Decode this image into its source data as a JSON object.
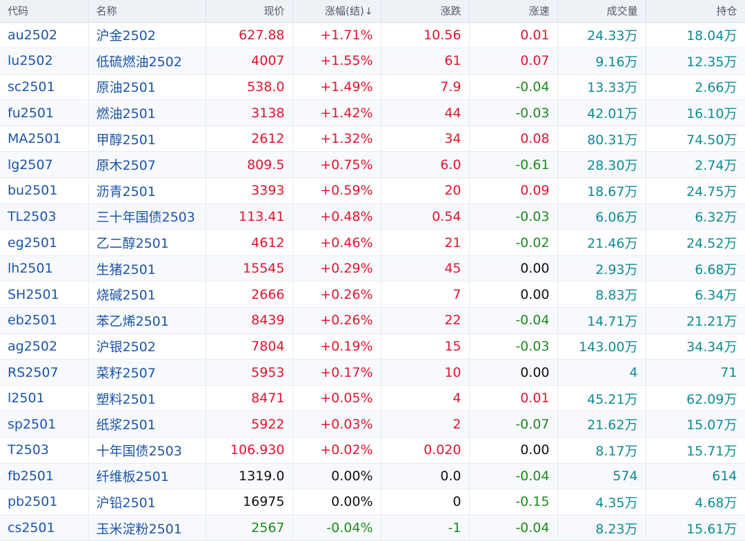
{
  "colors": {
    "up": "#e0142e",
    "down": "#1c8a1c",
    "flat": "#111111",
    "link": "#1c54a8",
    "teal": "#0f8a94",
    "header_bg": "#eef2f7"
  },
  "header": {
    "code": "代码",
    "name": "名称",
    "price": "现价",
    "pct": "涨幅(结)",
    "sort_icon": "↓",
    "change": "涨跌",
    "speed": "涨速",
    "volume": "成交量",
    "oi": "持仓"
  },
  "rows": [
    {
      "code": "au2502",
      "name": "沪金2502",
      "price": "627.88",
      "pct": "+1.71%",
      "change": "10.56",
      "speed": "0.01",
      "volume": "24.33万",
      "oi": "18.04万",
      "dir": "up",
      "sdir": "up"
    },
    {
      "code": "lu2502",
      "name": "低硫燃油2502",
      "price": "4007",
      "pct": "+1.55%",
      "change": "61",
      "speed": "0.07",
      "volume": "9.16万",
      "oi": "12.35万",
      "dir": "up",
      "sdir": "up"
    },
    {
      "code": "sc2501",
      "name": "原油2501",
      "price": "538.0",
      "pct": "+1.49%",
      "change": "7.9",
      "speed": "-0.04",
      "volume": "13.33万",
      "oi": "2.66万",
      "dir": "up",
      "sdir": "down"
    },
    {
      "code": "fu2501",
      "name": "燃油2501",
      "price": "3138",
      "pct": "+1.42%",
      "change": "44",
      "speed": "-0.03",
      "volume": "42.01万",
      "oi": "16.10万",
      "dir": "up",
      "sdir": "down"
    },
    {
      "code": "MA2501",
      "name": "甲醇2501",
      "price": "2612",
      "pct": "+1.32%",
      "change": "34",
      "speed": "0.08",
      "volume": "80.31万",
      "oi": "74.50万",
      "dir": "up",
      "sdir": "up"
    },
    {
      "code": "lg2507",
      "name": "原木2507",
      "price": "809.5",
      "pct": "+0.75%",
      "change": "6.0",
      "speed": "-0.61",
      "volume": "28.30万",
      "oi": "2.74万",
      "dir": "up",
      "sdir": "down"
    },
    {
      "code": "bu2501",
      "name": "沥青2501",
      "price": "3393",
      "pct": "+0.59%",
      "change": "20",
      "speed": "0.09",
      "volume": "18.67万",
      "oi": "24.75万",
      "dir": "up",
      "sdir": "up"
    },
    {
      "code": "TL2503",
      "name": "三十年国债2503",
      "price": "113.41",
      "pct": "+0.48%",
      "change": "0.54",
      "speed": "-0.03",
      "volume": "6.06万",
      "oi": "6.32万",
      "dir": "up",
      "sdir": "down"
    },
    {
      "code": "eg2501",
      "name": "乙二醇2501",
      "price": "4612",
      "pct": "+0.46%",
      "change": "21",
      "speed": "-0.02",
      "volume": "21.46万",
      "oi": "24.52万",
      "dir": "up",
      "sdir": "down"
    },
    {
      "code": "lh2501",
      "name": "生猪2501",
      "price": "15545",
      "pct": "+0.29%",
      "change": "45",
      "speed": "0.00",
      "volume": "2.93万",
      "oi": "6.68万",
      "dir": "up",
      "sdir": "flat"
    },
    {
      "code": "SH2501",
      "name": "烧碱2501",
      "price": "2666",
      "pct": "+0.26%",
      "change": "7",
      "speed": "0.00",
      "volume": "8.83万",
      "oi": "6.34万",
      "dir": "up",
      "sdir": "flat"
    },
    {
      "code": "eb2501",
      "name": "苯乙烯2501",
      "price": "8439",
      "pct": "+0.26%",
      "change": "22",
      "speed": "-0.04",
      "volume": "14.71万",
      "oi": "21.21万",
      "dir": "up",
      "sdir": "down"
    },
    {
      "code": "ag2502",
      "name": "沪银2502",
      "price": "7804",
      "pct": "+0.19%",
      "change": "15",
      "speed": "-0.03",
      "volume": "143.00万",
      "oi": "34.34万",
      "dir": "up",
      "sdir": "down"
    },
    {
      "code": "RS2507",
      "name": "菜籽2507",
      "price": "5953",
      "pct": "+0.17%",
      "change": "10",
      "speed": "0.00",
      "volume": "4",
      "oi": "71",
      "dir": "up",
      "sdir": "flat"
    },
    {
      "code": "l2501",
      "name": "塑料2501",
      "price": "8471",
      "pct": "+0.05%",
      "change": "4",
      "speed": "0.01",
      "volume": "45.21万",
      "oi": "62.09万",
      "dir": "up",
      "sdir": "up"
    },
    {
      "code": "sp2501",
      "name": "纸浆2501",
      "price": "5922",
      "pct": "+0.03%",
      "change": "2",
      "speed": "-0.07",
      "volume": "21.62万",
      "oi": "15.07万",
      "dir": "up",
      "sdir": "down"
    },
    {
      "code": "T2503",
      "name": "十年国债2503",
      "price": "106.930",
      "pct": "+0.02%",
      "change": "0.020",
      "speed": "0.00",
      "volume": "8.17万",
      "oi": "15.71万",
      "dir": "up",
      "sdir": "flat"
    },
    {
      "code": "fb2501",
      "name": "纤维板2501",
      "price": "1319.0",
      "pct": "0.00%",
      "change": "0.0",
      "speed": "-0.04",
      "volume": "574",
      "oi": "614",
      "dir": "flat",
      "sdir": "down"
    },
    {
      "code": "pb2501",
      "name": "沪铅2501",
      "price": "16975",
      "pct": "0.00%",
      "change": "0",
      "speed": "-0.15",
      "volume": "4.35万",
      "oi": "4.68万",
      "dir": "flat",
      "sdir": "down"
    },
    {
      "code": "cs2501",
      "name": "玉米淀粉2501",
      "price": "2567",
      "pct": "-0.04%",
      "change": "-1",
      "speed": "-0.04",
      "volume": "8.23万",
      "oi": "15.61万",
      "dir": "down",
      "sdir": "down"
    }
  ]
}
